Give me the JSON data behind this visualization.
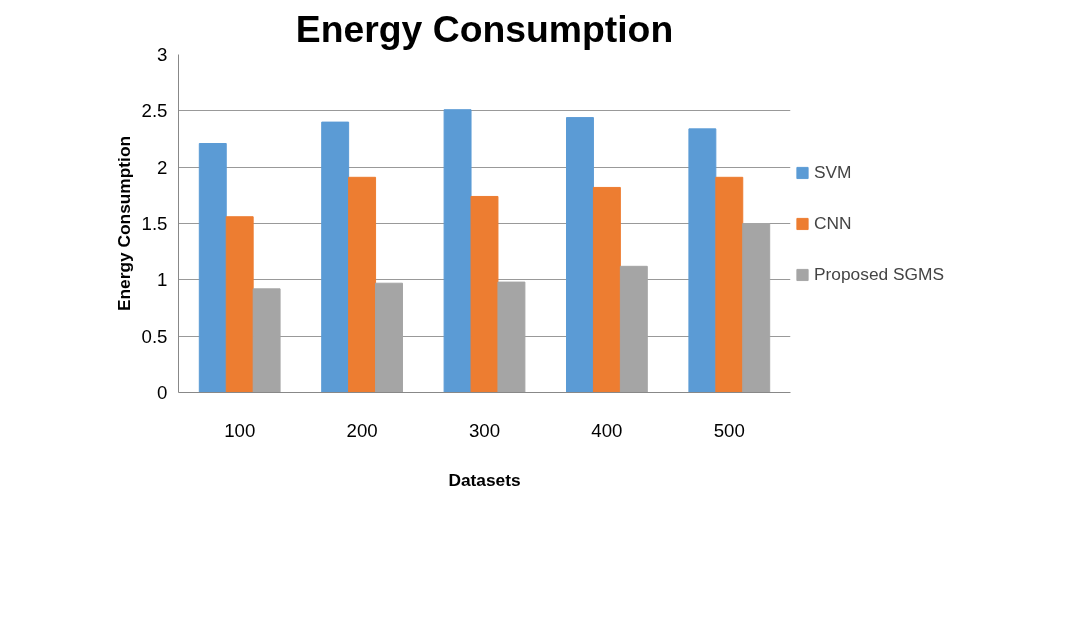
{
  "chart_data": {
    "type": "bar",
    "title": "Energy Consumption",
    "xlabel": "Datasets",
    "ylabel": "Energy Consumption",
    "categories": [
      "100",
      "200",
      "300",
      "400",
      "500"
    ],
    "series": [
      {
        "name": "SVM",
        "color": "#5b9bd5",
        "values": [
          2.21,
          2.4,
          2.51,
          2.44,
          2.34
        ]
      },
      {
        "name": "CNN",
        "color": "#ed7d31",
        "values": [
          1.56,
          1.91,
          1.74,
          1.82,
          1.91
        ]
      },
      {
        "name": "Proposed SGMS",
        "color": "#a5a5a5",
        "values": [
          0.92,
          0.97,
          0.98,
          1.12,
          1.5
        ]
      }
    ],
    "ylim": [
      0,
      3
    ],
    "yticks": [
      0,
      0.5,
      1,
      1.5,
      2,
      2.5,
      3
    ],
    "grid": "y",
    "legend": "right"
  }
}
